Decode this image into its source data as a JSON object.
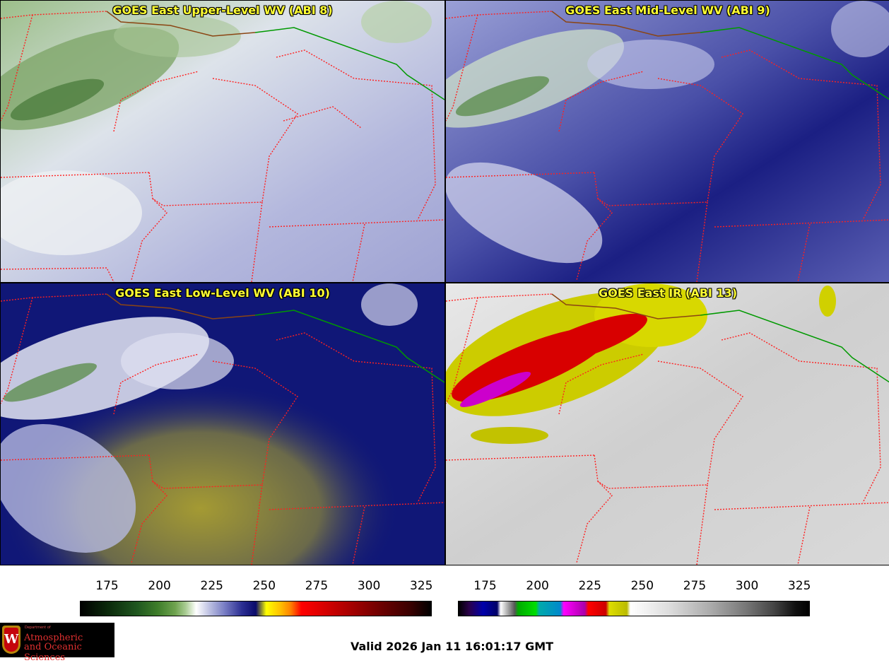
{
  "panels": [
    {
      "id": "p1",
      "title": "GOES East Upper-Level WV (ABI 8)",
      "base_color": "#c2c5e4"
    },
    {
      "id": "p2",
      "title": "GOES East Mid-Level WV (ABI 9)",
      "base_color": "#40459e"
    },
    {
      "id": "p3",
      "title": "GOES East Low-Level WV (ABI 10)",
      "base_color": "#101777"
    },
    {
      "id": "p4",
      "title": "GOES East IR (ABI 13)",
      "base_color": "#d2d2d2"
    }
  ],
  "colorbars": [
    {
      "ticks": [
        "175",
        "200",
        "225",
        "250",
        "275",
        "300",
        "325"
      ],
      "tick_values": [
        175,
        200,
        225,
        250,
        275,
        300,
        325
      ],
      "range": [
        162,
        330
      ]
    },
    {
      "ticks": [
        "175",
        "200",
        "225",
        "250",
        "275",
        "300",
        "325"
      ],
      "tick_values": [
        175,
        200,
        225,
        250,
        275,
        300,
        325
      ],
      "range": [
        162,
        330
      ]
    }
  ],
  "colors": {
    "state_border": "#ff2020",
    "canada_border": "#8b4513",
    "lake_border": "#009900",
    "title_color": "#ffff33"
  },
  "logo": {
    "crest_letter": "W",
    "dept_small": "Department of",
    "dept_line1": "Atmospheric",
    "dept_line2": "and Oceanic Sciences"
  },
  "valid_text": "Valid 2026 Jan 11 16:01:17 GMT"
}
